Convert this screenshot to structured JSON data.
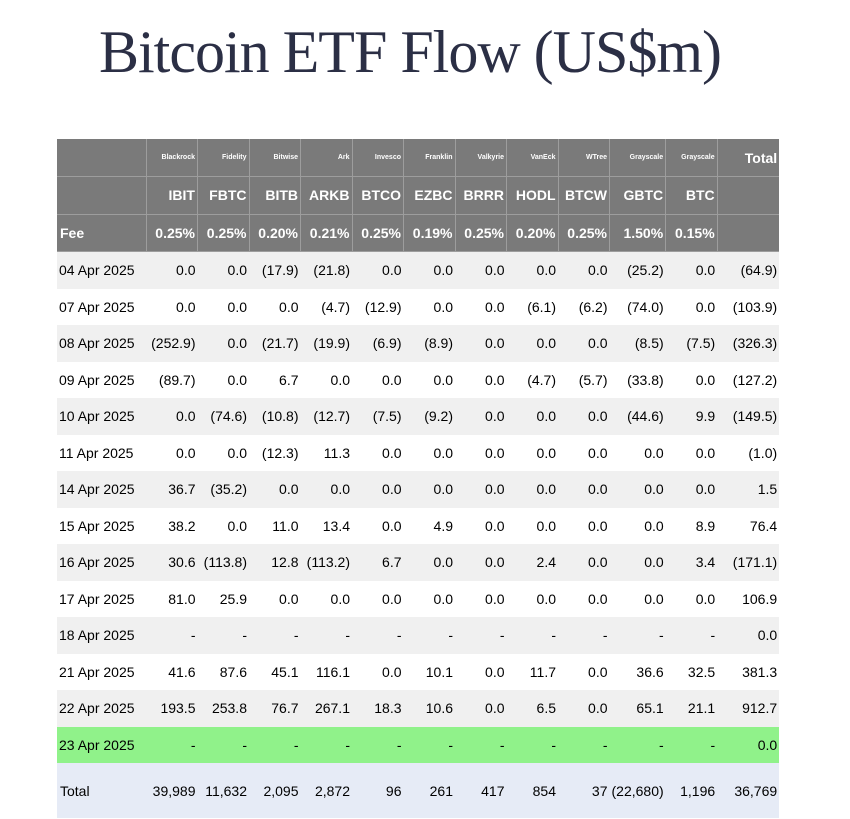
{
  "title": "Bitcoin ETF Flow (US$m)",
  "header": {
    "issuers": [
      "Blackrock",
      "Fidelity",
      "Bitwise",
      "Ark",
      "Invesco",
      "Franklin",
      "Valkyrie",
      "VanEck",
      "WTree",
      "Grayscale",
      "Grayscale"
    ],
    "total_label": "Total",
    "tickers": [
      "IBIT",
      "FBTC",
      "BITB",
      "ARKB",
      "BTCO",
      "EZBC",
      "BRRR",
      "HODL",
      "BTCW",
      "GBTC",
      "BTC"
    ],
    "fee_label": "Fee",
    "fees": [
      "0.25%",
      "0.25%",
      "0.20%",
      "0.21%",
      "0.25%",
      "0.19%",
      "0.25%",
      "0.20%",
      "0.25%",
      "1.50%",
      "0.15%"
    ]
  },
  "rows": [
    {
      "date": "04 Apr 2025",
      "values": [
        "0.0",
        "0.0",
        "(17.9)",
        "(21.8)",
        "0.0",
        "0.0",
        "0.0",
        "0.0",
        "0.0",
        "(25.2)",
        "0.0"
      ],
      "total": "(64.9)"
    },
    {
      "date": "07 Apr 2025",
      "values": [
        "0.0",
        "0.0",
        "0.0",
        "(4.7)",
        "(12.9)",
        "0.0",
        "0.0",
        "(6.1)",
        "(6.2)",
        "(74.0)",
        "0.0"
      ],
      "total": "(103.9)"
    },
    {
      "date": "08 Apr 2025",
      "values": [
        "(252.9)",
        "0.0",
        "(21.7)",
        "(19.9)",
        "(6.9)",
        "(8.9)",
        "0.0",
        "0.0",
        "0.0",
        "(8.5)",
        "(7.5)"
      ],
      "total": "(326.3)"
    },
    {
      "date": "09 Apr 2025",
      "values": [
        "(89.7)",
        "0.0",
        "6.7",
        "0.0",
        "0.0",
        "0.0",
        "0.0",
        "(4.7)",
        "(5.7)",
        "(33.8)",
        "0.0"
      ],
      "total": "(127.2)"
    },
    {
      "date": "10 Apr 2025",
      "values": [
        "0.0",
        "(74.6)",
        "(10.8)",
        "(12.7)",
        "(7.5)",
        "(9.2)",
        "0.0",
        "0.0",
        "0.0",
        "(44.6)",
        "9.9"
      ],
      "total": "(149.5)"
    },
    {
      "date": "11 Apr 2025",
      "values": [
        "0.0",
        "0.0",
        "(12.3)",
        "11.3",
        "0.0",
        "0.0",
        "0.0",
        "0.0",
        "0.0",
        "0.0",
        "0.0"
      ],
      "total": "(1.0)"
    },
    {
      "date": "14 Apr 2025",
      "values": [
        "36.7",
        "(35.2)",
        "0.0",
        "0.0",
        "0.0",
        "0.0",
        "0.0",
        "0.0",
        "0.0",
        "0.0",
        "0.0"
      ],
      "total": "1.5"
    },
    {
      "date": "15 Apr 2025",
      "values": [
        "38.2",
        "0.0",
        "11.0",
        "13.4",
        "0.0",
        "4.9",
        "0.0",
        "0.0",
        "0.0",
        "0.0",
        "8.9"
      ],
      "total": "76.4"
    },
    {
      "date": "16 Apr 2025",
      "values": [
        "30.6",
        "(113.8)",
        "12.8",
        "(113.2)",
        "6.7",
        "0.0",
        "0.0",
        "2.4",
        "0.0",
        "0.0",
        "3.4"
      ],
      "total": "(171.1)"
    },
    {
      "date": "17 Apr 2025",
      "values": [
        "81.0",
        "25.9",
        "0.0",
        "0.0",
        "0.0",
        "0.0",
        "0.0",
        "0.0",
        "0.0",
        "0.0",
        "0.0"
      ],
      "total": "106.9"
    },
    {
      "date": "18 Apr 2025",
      "values": [
        "-",
        "-",
        "-",
        "-",
        "-",
        "-",
        "-",
        "-",
        "-",
        "-",
        "-"
      ],
      "total": "0.0"
    },
    {
      "date": "21 Apr 2025",
      "values": [
        "41.6",
        "87.6",
        "45.1",
        "116.1",
        "0.0",
        "10.1",
        "0.0",
        "11.7",
        "0.0",
        "36.6",
        "32.5"
      ],
      "total": "381.3"
    },
    {
      "date": "22 Apr 2025",
      "values": [
        "193.5",
        "253.8",
        "76.7",
        "267.1",
        "18.3",
        "10.6",
        "0.0",
        "6.5",
        "0.0",
        "65.1",
        "21.1"
      ],
      "total": "912.7"
    },
    {
      "date": "23 Apr 2025",
      "values": [
        "-",
        "-",
        "-",
        "-",
        "-",
        "-",
        "-",
        "-",
        "-",
        "-",
        "-"
      ],
      "total": "0.0",
      "highlight": "#90f28a"
    }
  ],
  "totals_row": {
    "label": "Total",
    "values": [
      "39,989",
      "11,632",
      "2,095",
      "2,872",
      "96",
      "261",
      "417",
      "854",
      "37",
      "(22,680)",
      "1,196"
    ],
    "total": "36,769"
  },
  "colors": {
    "header_bg": "#7a7a7a",
    "negative": "#e02020",
    "highlight": "#90f28a",
    "total_row_bg": "#e6ebf6",
    "alt_row_bg": "#f0f0f0"
  }
}
